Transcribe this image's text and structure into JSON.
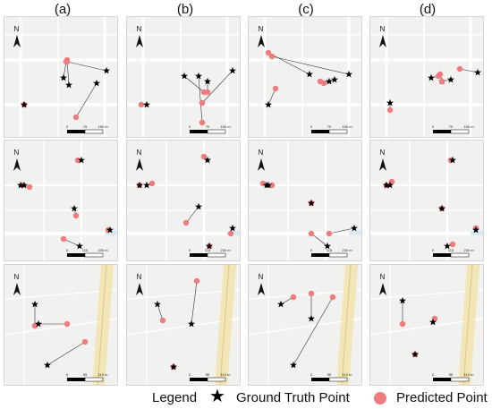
{
  "columns": [
    "(a)",
    "(b)",
    "(c)",
    "(d)"
  ],
  "north_label": "N",
  "scale_units": {
    "row1": "150 m",
    "row2": "230 m",
    "row3": "110 m"
  },
  "scale_ticks": {
    "row1": [
      "0",
      "75",
      "150 m"
    ],
    "row2": [
      "0",
      "115",
      "230 m"
    ],
    "row3": [
      "0",
      "55",
      "110 m"
    ]
  },
  "legend": {
    "title": "Legend",
    "ground_truth": "Ground Truth Point",
    "predicted": "Predicted Point"
  },
  "colors": {
    "predicted": "#f07b7f",
    "ground_truth": "#000000",
    "road": "#ffffff",
    "map_bg": "#f1f1ef",
    "rail": "#f3e3a8"
  }
}
